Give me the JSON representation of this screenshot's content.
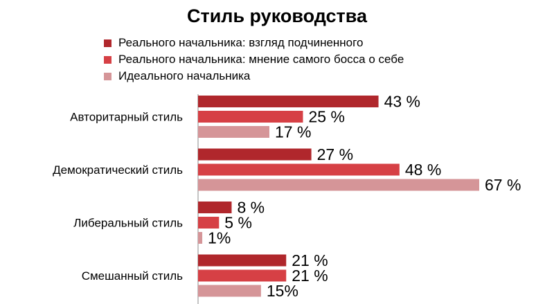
{
  "chart_data": {
    "type": "bar",
    "orientation": "horizontal",
    "title": "Стиль руководства",
    "categories": [
      "Авторитарный стиль",
      "Демократический стиль",
      "Либеральный стиль",
      "Смешанный стиль"
    ],
    "series": [
      {
        "name": "Реального начальника: взгляд подчиненного",
        "color": "#b0272c",
        "values": [
          43,
          27,
          8,
          21
        ],
        "labels": [
          "43 %",
          "27 %",
          "8 %",
          "21 %"
        ]
      },
      {
        "name": "Реального начальника: мнение самого босса о себе",
        "color": "#d64045",
        "values": [
          25,
          48,
          5,
          21
        ],
        "labels": [
          "25 %",
          "48 %",
          "5 %",
          "21 %"
        ]
      },
      {
        "name": "Идеального начальника",
        "color": "#d59598",
        "values": [
          17,
          67,
          1,
          15
        ],
        "labels": [
          "17 %",
          "67 %",
          "1%",
          "15%"
        ]
      }
    ],
    "xlim": [
      0,
      67
    ],
    "legend_position": "top",
    "grid": false
  }
}
